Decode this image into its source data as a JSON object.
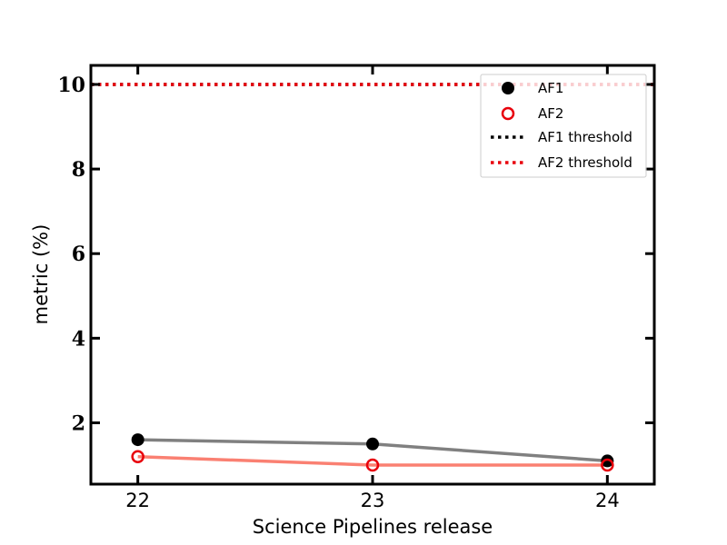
{
  "chart_data": {
    "type": "line",
    "title": "",
    "xlabel": "Science Pipelines release",
    "ylabel": "metric (%)",
    "categories": [
      "22",
      "23",
      "24"
    ],
    "xlim": [
      21.8,
      24.2
    ],
    "ylim": [
      0.55,
      10.45
    ],
    "yticks": [
      "2",
      "4",
      "6",
      "8",
      "10"
    ],
    "grid": false,
    "legend_position": "top-right",
    "series": [
      {
        "name": "AF1",
        "x": [
          22,
          23,
          24
        ],
        "values": [
          1.6,
          1.5,
          1.1
        ],
        "marker": "filled-circle",
        "marker_color": "#000000",
        "line_color": "#808080"
      },
      {
        "name": "AF2",
        "x": [
          22,
          23,
          24
        ],
        "values": [
          1.2,
          1.0,
          1.0
        ],
        "marker": "open-circle",
        "marker_color": "#e8000b",
        "line_color": "#fa8072"
      }
    ],
    "thresholds": [
      {
        "name": "AF1 threshold",
        "value": 10,
        "color": "#000000",
        "style": "dotted"
      },
      {
        "name": "AF2 threshold",
        "value": 10,
        "color": "#e8000b",
        "style": "dotted"
      }
    ]
  }
}
